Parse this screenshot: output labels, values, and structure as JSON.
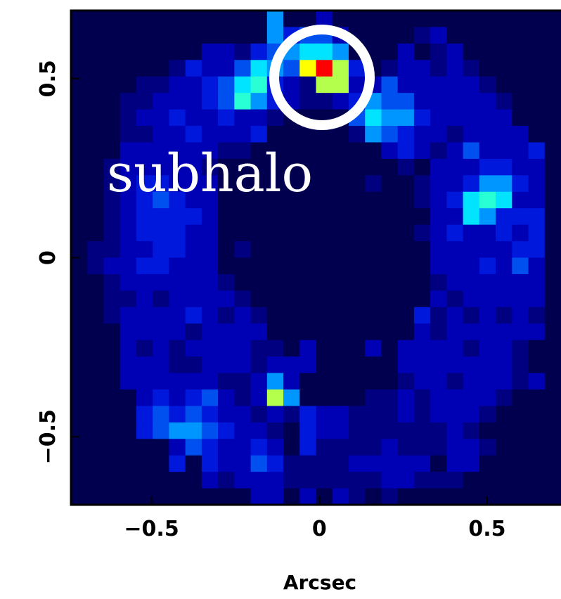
{
  "chart_data": {
    "type": "heatmap",
    "xlabel": "Arcsec",
    "annotation": "subhalo",
    "xlim": [
      -0.74,
      0.72
    ],
    "ylim": [
      -0.69,
      0.69
    ],
    "xticks": [
      {
        "value": -0.5,
        "label": "−0.5"
      },
      0,
      0.5
    ],
    "yticks": [
      {
        "value": -0.5,
        "label": "−0.5"
      },
      0,
      0.5
    ],
    "colormap": [
      "#00004f",
      "#000080",
      "#0000b4",
      "#0018dc",
      "#0050f0",
      "#0096ff",
      "#00e4ff",
      "#28ffd4",
      "#b4ff4c",
      "#ffff00",
      "#ff0000"
    ],
    "z": [
      [
        0,
        0,
        0,
        0,
        0,
        0,
        0,
        0,
        0,
        0,
        0,
        0,
        5,
        0,
        0,
        2,
        0,
        0,
        0,
        0,
        0,
        0,
        0,
        0,
        0,
        0,
        0,
        0,
        0,
        0
      ],
      [
        0,
        0,
        0,
        0,
        0,
        0,
        0,
        0,
        0,
        0,
        0,
        0,
        5,
        3,
        4,
        4,
        2,
        0,
        0,
        0,
        0,
        1,
        2,
        0,
        0,
        0,
        0,
        0,
        0,
        0
      ],
      [
        0,
        0,
        0,
        0,
        0,
        0,
        0,
        0,
        2,
        2,
        1,
        3,
        4,
        5,
        6,
        6,
        5,
        0,
        0,
        0,
        2,
        0,
        1,
        2,
        0,
        0,
        0,
        0,
        0,
        0
      ],
      [
        0,
        0,
        0,
        0,
        0,
        0,
        1,
        3,
        2,
        2,
        4,
        6,
        5,
        4,
        9,
        10,
        8,
        3,
        0,
        1,
        2,
        2,
        1,
        2,
        1,
        0,
        0,
        0,
        0,
        0
      ],
      [
        0,
        0,
        0,
        0,
        1,
        1,
        2,
        2,
        3,
        4,
        6,
        7,
        3,
        2,
        1,
        8,
        8,
        2,
        2,
        4,
        2,
        2,
        2,
        2,
        2,
        1,
        0,
        0,
        0,
        0
      ],
      [
        0,
        0,
        0,
        1,
        1,
        2,
        2,
        2,
        3,
        4,
        7,
        5,
        3,
        2,
        1,
        1,
        2,
        3,
        5,
        4,
        4,
        2,
        2,
        2,
        2,
        2,
        1,
        0,
        0,
        0
      ],
      [
        0,
        0,
        0,
        1,
        2,
        2,
        3,
        2,
        2,
        3,
        2,
        2,
        1,
        0,
        0,
        0,
        0,
        4,
        6,
        5,
        5,
        3,
        2,
        2,
        2,
        2,
        2,
        0,
        0,
        0
      ],
      [
        0,
        0,
        0,
        1,
        1,
        2,
        2,
        3,
        2,
        2,
        2,
        3,
        0,
        0,
        0,
        0,
        0,
        1,
        5,
        4,
        3,
        2,
        2,
        1,
        2,
        2,
        2,
        2,
        0,
        0
      ],
      [
        0,
        0,
        0,
        2,
        2,
        2,
        2,
        2,
        2,
        1,
        1,
        0,
        0,
        0,
        0,
        0,
        0,
        0,
        0,
        2,
        3,
        2,
        1,
        2,
        4,
        2,
        2,
        2,
        3,
        0
      ],
      [
        0,
        0,
        1,
        2,
        2,
        2,
        2,
        2,
        1,
        0,
        0,
        0,
        0,
        0,
        0,
        0,
        0,
        0,
        0,
        0,
        1,
        0,
        2,
        2,
        2,
        3,
        3,
        2,
        2,
        0
      ],
      [
        0,
        0,
        1,
        2,
        3,
        3,
        2,
        2,
        2,
        0,
        0,
        0,
        0,
        0,
        0,
        0,
        0,
        0,
        1,
        0,
        0,
        1,
        2,
        2,
        3,
        5,
        5,
        3,
        2,
        0
      ],
      [
        0,
        0,
        1,
        2,
        3,
        4,
        3,
        2,
        2,
        0,
        0,
        0,
        0,
        0,
        0,
        0,
        0,
        0,
        0,
        0,
        0,
        1,
        2,
        3,
        6,
        7,
        6,
        2,
        2,
        0
      ],
      [
        0,
        0,
        1,
        2,
        3,
        3,
        3,
        3,
        2,
        0,
        0,
        0,
        0,
        0,
        0,
        0,
        0,
        0,
        0,
        0,
        0,
        0,
        2,
        2,
        6,
        5,
        3,
        3,
        3,
        0
      ],
      [
        0,
        0,
        1,
        2,
        3,
        3,
        3,
        2,
        2,
        0,
        0,
        0,
        0,
        0,
        0,
        0,
        0,
        0,
        0,
        0,
        0,
        1,
        2,
        3,
        2,
        2,
        3,
        2,
        3,
        0
      ],
      [
        0,
        1,
        1,
        2,
        2,
        3,
        3,
        2,
        2,
        0,
        1,
        0,
        0,
        0,
        0,
        0,
        0,
        0,
        0,
        0,
        0,
        0,
        2,
        2,
        2,
        2,
        2,
        3,
        3,
        0
      ],
      [
        0,
        1,
        2,
        2,
        3,
        3,
        2,
        2,
        2,
        0,
        0,
        0,
        0,
        0,
        0,
        0,
        0,
        0,
        0,
        0,
        0,
        0,
        2,
        2,
        2,
        3,
        2,
        4,
        2,
        0
      ],
      [
        0,
        0,
        1,
        2,
        2,
        2,
        2,
        2,
        2,
        1,
        0,
        0,
        0,
        0,
        0,
        0,
        0,
        0,
        0,
        0,
        0,
        0,
        1,
        2,
        2,
        2,
        2,
        2,
        2,
        0
      ],
      [
        0,
        0,
        1,
        1,
        2,
        1,
        2,
        2,
        2,
        2,
        1,
        0,
        0,
        0,
        0,
        0,
        0,
        0,
        0,
        0,
        0,
        0,
        2,
        1,
        2,
        2,
        2,
        2,
        2,
        0
      ],
      [
        0,
        0,
        1,
        2,
        2,
        2,
        2,
        3,
        2,
        1,
        2,
        1,
        0,
        0,
        0,
        0,
        0,
        0,
        0,
        0,
        0,
        3,
        1,
        2,
        1,
        2,
        1,
        2,
        1,
        0
      ],
      [
        0,
        0,
        0,
        2,
        2,
        2,
        2,
        1,
        2,
        2,
        2,
        2,
        0,
        0,
        0,
        0,
        0,
        0,
        0,
        0,
        0,
        2,
        1,
        2,
        2,
        2,
        2,
        2,
        2,
        0
      ],
      [
        0,
        0,
        0,
        2,
        1,
        2,
        1,
        2,
        2,
        2,
        2,
        1,
        1,
        0,
        2,
        0,
        0,
        0,
        2,
        0,
        2,
        2,
        2,
        2,
        1,
        2,
        2,
        1,
        0,
        0
      ],
      [
        0,
        0,
        0,
        2,
        2,
        2,
        1,
        1,
        2,
        2,
        2,
        1,
        2,
        2,
        2,
        0,
        0,
        0,
        0,
        0,
        2,
        2,
        2,
        2,
        2,
        2,
        2,
        1,
        0,
        0
      ],
      [
        0,
        0,
        0,
        2,
        2,
        2,
        2,
        2,
        2,
        1,
        1,
        2,
        5,
        2,
        0,
        0,
        0,
        0,
        0,
        0,
        1,
        2,
        2,
        1,
        2,
        2,
        2,
        1,
        2,
        0
      ],
      [
        0,
        0,
        0,
        0,
        2,
        3,
        2,
        3,
        4,
        2,
        1,
        2,
        8,
        5,
        0,
        0,
        0,
        0,
        1,
        1,
        2,
        1,
        2,
        2,
        2,
        2,
        1,
        0,
        0,
        0
      ],
      [
        0,
        0,
        0,
        0,
        3,
        4,
        3,
        4,
        3,
        2,
        2,
        1,
        2,
        1,
        3,
        2,
        2,
        1,
        1,
        1,
        2,
        1,
        2,
        2,
        2,
        1,
        0,
        0,
        0,
        0
      ],
      [
        0,
        0,
        0,
        0,
        3,
        4,
        5,
        5,
        4,
        3,
        2,
        2,
        1,
        0,
        3,
        2,
        2,
        1,
        1,
        1,
        1,
        1,
        1,
        2,
        1,
        0,
        0,
        0,
        0,
        0
      ],
      [
        0,
        0,
        0,
        0,
        0,
        0,
        2,
        4,
        3,
        2,
        2,
        3,
        2,
        0,
        3,
        1,
        1,
        1,
        1,
        2,
        1,
        1,
        1,
        2,
        2,
        1,
        0,
        0,
        0,
        0
      ],
      [
        0,
        0,
        0,
        0,
        0,
        0,
        3,
        0,
        3,
        2,
        2,
        4,
        3,
        1,
        1,
        1,
        1,
        2,
        2,
        2,
        2,
        2,
        0,
        2,
        2,
        0,
        0,
        0,
        0,
        0
      ],
      [
        0,
        0,
        0,
        0,
        0,
        0,
        0,
        0,
        2,
        1,
        2,
        2,
        2,
        1,
        1,
        1,
        1,
        1,
        1,
        2,
        2,
        1,
        1,
        1,
        0,
        0,
        0,
        0,
        0,
        0
      ],
      [
        0,
        0,
        0,
        0,
        0,
        0,
        0,
        0,
        0,
        0,
        0,
        2,
        2,
        0,
        2,
        0,
        2,
        1,
        0,
        1,
        0,
        0,
        0,
        0,
        0,
        0,
        0,
        0,
        0,
        0
      ]
    ]
  }
}
